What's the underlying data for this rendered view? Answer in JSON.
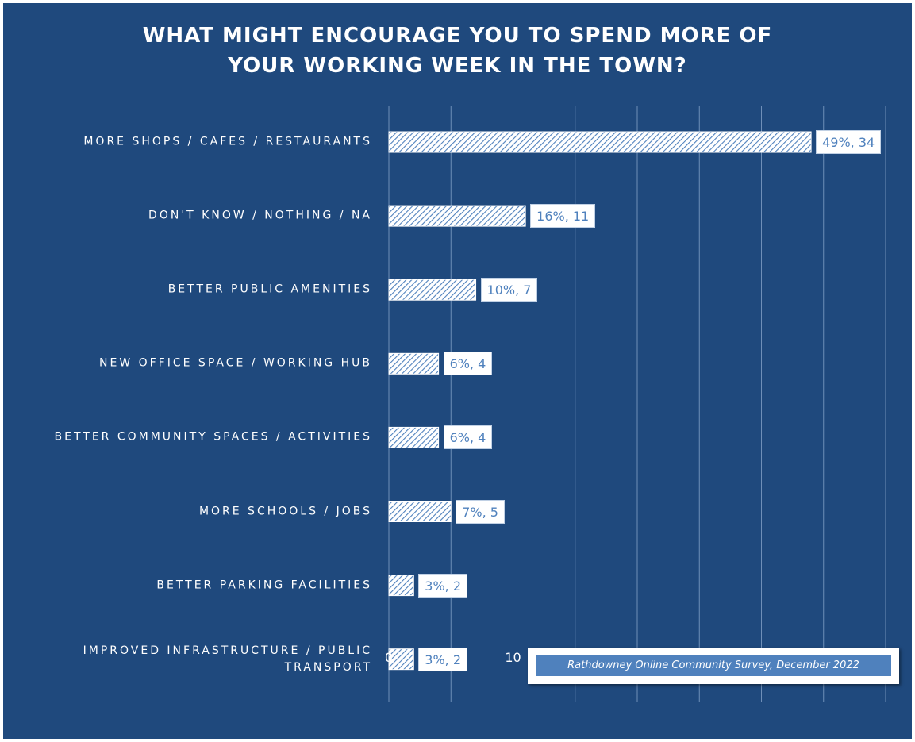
{
  "chart_data": {
    "type": "bar",
    "orientation": "horizontal",
    "title": "WHAT MIGHT ENCOURAGE YOU TO SPEND MORE OF YOUR WORKING WEEK IN THE TOWN?",
    "title_lines": [
      "WHAT MIGHT ENCOURAGE YOU TO SPEND MORE OF",
      "YOUR WORKING WEEK IN THE TOWN?"
    ],
    "categories": [
      "MORE SHOPS / CAFES / RESTAURANTS",
      "DON'T KNOW / NOTHING / NA",
      "BETTER PUBLIC AMENITIES",
      "NEW OFFICE SPACE / WORKING HUB",
      "BETTER COMMUNITY SPACES / ACTIVITIES",
      "MORE SCHOOLS / JOBS",
      "BETTER PARKING FACILITIES",
      "IMPROVED INFRASTRUCTURE / PUBLIC TRANSPORT"
    ],
    "category_lines": [
      [
        "MORE SHOPS / CAFES / RESTAURANTS"
      ],
      [
        "DON'T KNOW / NOTHING / NA"
      ],
      [
        "BETTER PUBLIC AMENITIES"
      ],
      [
        "NEW OFFICE SPACE / WORKING HUB"
      ],
      [
        "BETTER COMMUNITY SPACES / ACTIVITIES"
      ],
      [
        "MORE SCHOOLS / JOBS"
      ],
      [
        "BETTER PARKING FACILITIES"
      ],
      [
        "IMPROVED INFRASTRUCTURE / PUBLIC",
        "TRANSPORT"
      ]
    ],
    "values": [
      34,
      11,
      7,
      4,
      4,
      5,
      2,
      2
    ],
    "data_labels": [
      "49%, 34",
      "16%, 11",
      "10%, 7",
      "6%, 4",
      "6%, 4",
      "7%, 5",
      "3%, 2",
      "3%, 2"
    ],
    "xlim": [
      0,
      40
    ],
    "xticks": [
      "0",
      "5",
      "10",
      "15",
      "20",
      "25",
      "30",
      "35",
      "40"
    ],
    "xlabel": "",
    "ylabel": "",
    "grid": true,
    "bar_pattern": "diagonal-hatch",
    "colors": {
      "background": "#1f497d",
      "bar_fill": "#ffffff",
      "bar_hatch": "#4f81bd",
      "gridline": "#6f8fb8",
      "label_text": "#4f81bd",
      "source_fill": "#4f81bd"
    },
    "source_note": "Rathdowney Online Community Survey, December 2022"
  }
}
